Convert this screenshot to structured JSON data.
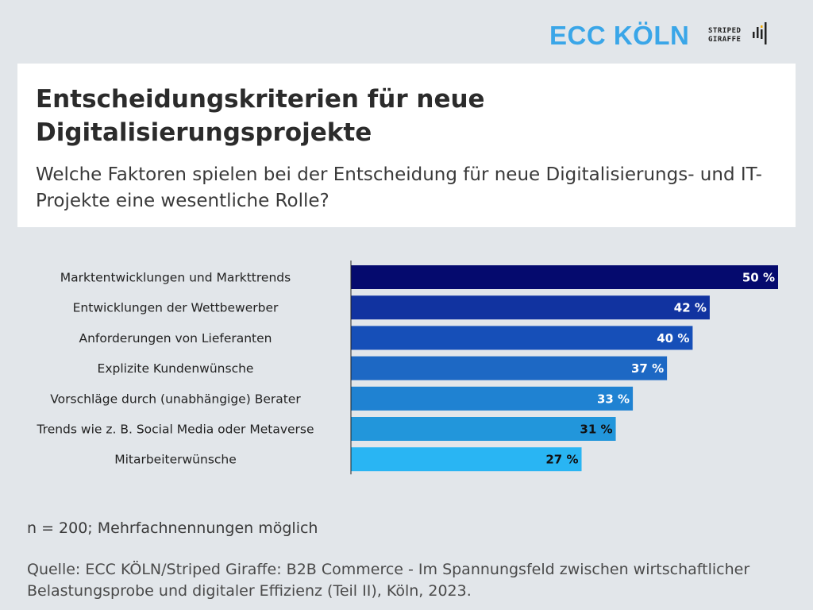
{
  "header": {
    "brand_primary": "ECC KÖLN",
    "brand_secondary_line1": "STRIPED",
    "brand_secondary_line2": "GIRAFFE",
    "brand_primary_color": "#3aa6e8"
  },
  "title_box": {
    "title": "Entscheidungskriterien für neue Digitalisierungsprojekte",
    "subtitle": "Welche Faktoren spielen bei der Entscheidung für neue Digitalisierungs- und IT-Projekte eine wesentliche Rolle?"
  },
  "chart_data": {
    "type": "bar",
    "orientation": "horizontal",
    "categories": [
      "Marktentwicklungen und Markttrends",
      "Entwicklungen der Wettbewerber",
      "Anforderungen von Lieferanten",
      "Explizite Kundenwünsche",
      "Vorschläge durch (unabhängige) Berater",
      "Trends wie z. B. Social Media oder Metaverse",
      "Mitarbeiterwünsche"
    ],
    "values": [
      50,
      42,
      40,
      37,
      33,
      31,
      27
    ],
    "value_labels": [
      "50 %",
      "42 %",
      "40 %",
      "37 %",
      "33 %",
      "31 %",
      "27 %"
    ],
    "bar_colors": [
      "#050a6e",
      "#1133a0",
      "#164fb8",
      "#1d68c4",
      "#1f82d2",
      "#2296db",
      "#29b5f3"
    ],
    "label_colors": [
      "#ffffff",
      "#ffffff",
      "#ffffff",
      "#ffffff",
      "#ffffff",
      "#111111",
      "#111111"
    ],
    "xlim": [
      0,
      50
    ],
    "grid": false,
    "legend": "none"
  },
  "footer": {
    "note": "n = 200; Mehrfachnennungen möglich",
    "source": "Quelle: ECC KÖLN/Striped Giraffe: B2B Commerce - Im Spannungsfeld zwischen wirtschaftlicher Belastungsprobe und digitaler Effizienz (Teil II), Köln, 2023."
  }
}
